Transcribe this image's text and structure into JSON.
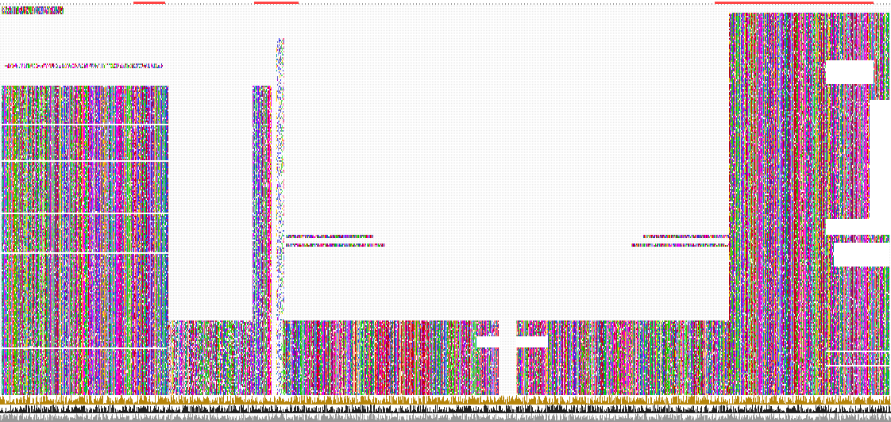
{
  "viewer": {
    "title": "",
    "description_visible_text": ""
  },
  "legend": {
    "residue_colors": {
      "A": "#33cc00",
      "C": "#ffcc00",
      "D": "#cc0000",
      "E": "#cc0033",
      "F": "#00cc00",
      "G": "#ff00ff",
      "H": "#009999",
      "I": "#3333cc",
      "K": "#990066",
      "L": "#3333ff",
      "M": "#6666cc",
      "N": "#ff0099",
      "P": "#ffcc99",
      "Q": "#ff6699",
      "R": "#cc00cc",
      "S": "#ff6666",
      "T": "#9999ff",
      "V": "#6699ff",
      "W": "#66ff66",
      "Y": "#66cc66",
      "gap": "#ffffff"
    },
    "conservation_bar_color": "#b8860b",
    "quality_bar_color": "#222222",
    "consensus_bar_color": "#999999"
  },
  "tracks": [
    {
      "id": "alignment",
      "kind": "sequence-matrix"
    },
    {
      "id": "conservation",
      "kind": "histogram"
    },
    {
      "id": "quality",
      "kind": "histogram"
    },
    {
      "id": "consensus",
      "kind": "histogram"
    }
  ]
}
